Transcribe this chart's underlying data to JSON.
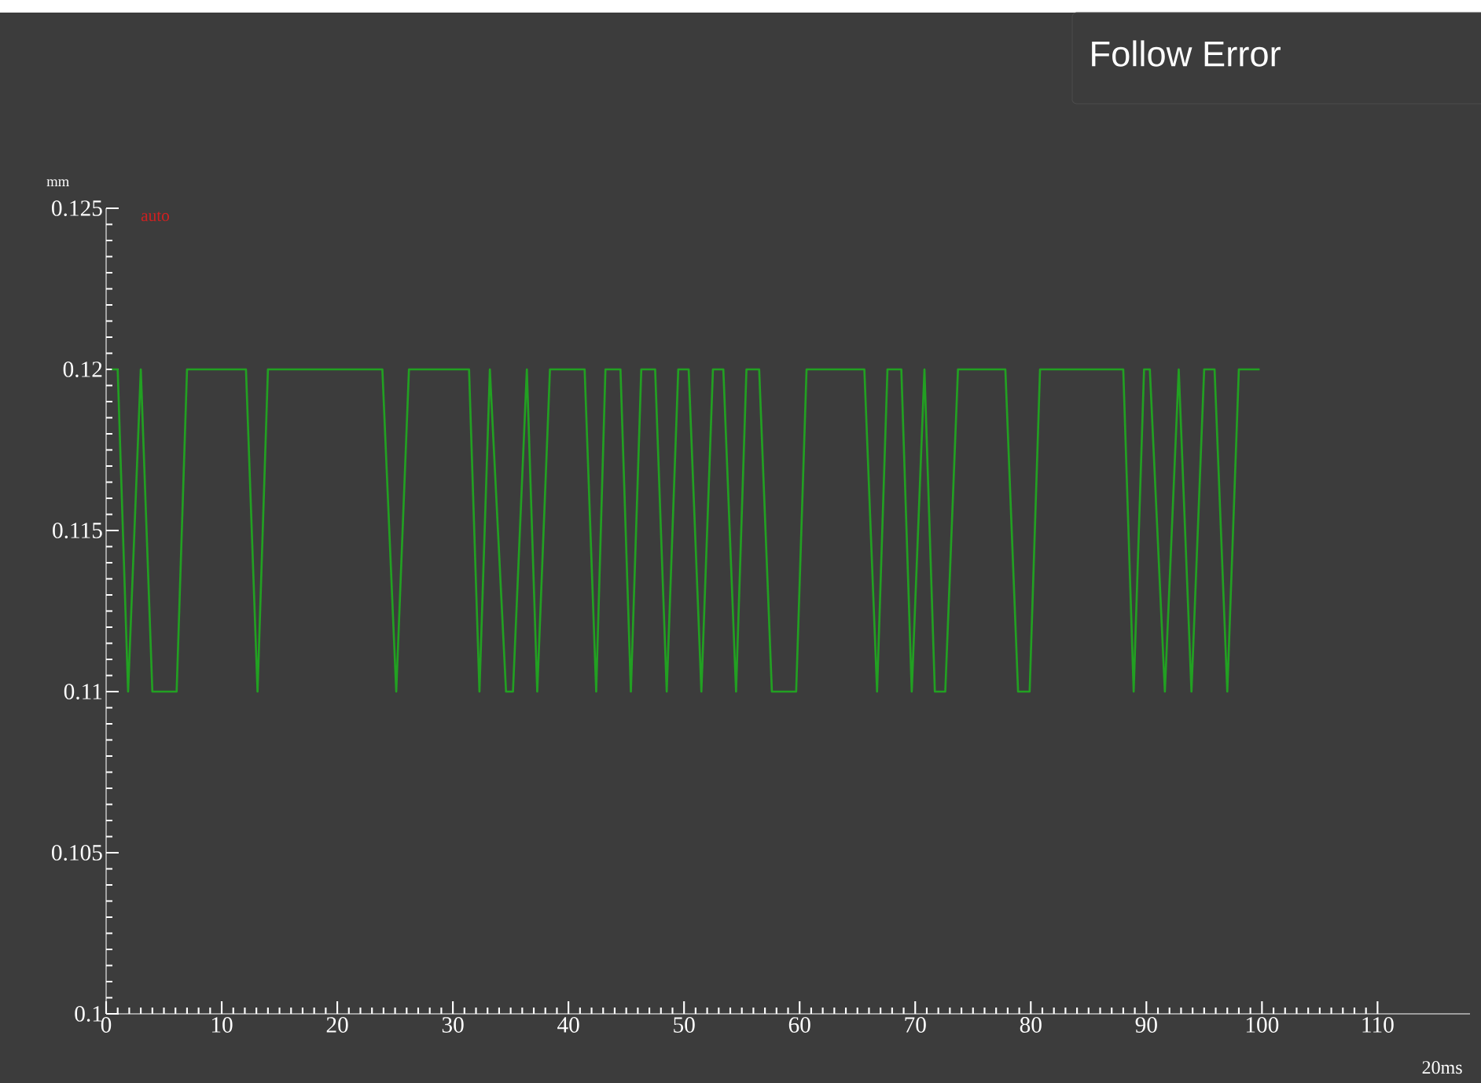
{
  "chart_data": {
    "type": "line",
    "title": "Follow Error",
    "xlabel": "20ms",
    "ylabel": "mm",
    "annotations": [
      "auto"
    ],
    "x": [
      0.5,
      1.0,
      1.9,
      3.0,
      4.0,
      6.1,
      7.0,
      12.1,
      13.1,
      14.0,
      23.9,
      25.1,
      26.2,
      31.4,
      32.3,
      33.2,
      34.6,
      35.2,
      36.4,
      37.3,
      38.4,
      41.4,
      42.4,
      43.2,
      44.5,
      45.4,
      46.3,
      47.5,
      48.5,
      49.5,
      50.4,
      51.5,
      52.5,
      53.4,
      54.5,
      55.4,
      56.5,
      57.6,
      59.7,
      60.6,
      65.6,
      66.7,
      67.6,
      68.8,
      69.7,
      70.8,
      71.7,
      72.6,
      73.7,
      77.8,
      78.9,
      79.9,
      80.8,
      88.0,
      88.9,
      89.8,
      90.3,
      91.6,
      92.8,
      93.9,
      95.0,
      95.9,
      97.0,
      98.0,
      99.8
    ],
    "series": [
      {
        "color": "#22a022",
        "values": [
          0.12,
          0.12,
          0.11,
          0.12,
          0.11,
          0.11,
          0.12,
          0.12,
          0.11,
          0.12,
          0.12,
          0.11,
          0.12,
          0.12,
          0.11,
          0.12,
          0.11,
          0.11,
          0.12,
          0.11,
          0.12,
          0.12,
          0.11,
          0.12,
          0.12,
          0.11,
          0.12,
          0.12,
          0.11,
          0.12,
          0.12,
          0.11,
          0.12,
          0.12,
          0.11,
          0.12,
          0.12,
          0.11,
          0.11,
          0.12,
          0.12,
          0.11,
          0.12,
          0.12,
          0.11,
          0.12,
          0.11,
          0.11,
          0.12,
          0.12,
          0.11,
          0.11,
          0.12,
          0.12,
          0.11,
          0.12,
          0.12,
          0.11,
          0.12,
          0.11,
          0.12,
          0.12,
          0.11,
          0.12,
          0.12
        ]
      }
    ],
    "xlim": [
      0,
      118
    ],
    "ylim": [
      0.1,
      0.125
    ],
    "xticks": [
      0,
      10,
      20,
      30,
      40,
      50,
      60,
      70,
      80,
      90,
      100,
      110
    ],
    "yticks": [
      0.1,
      0.105,
      0.11,
      0.115,
      0.12,
      0.125
    ],
    "line_style": "solid"
  }
}
